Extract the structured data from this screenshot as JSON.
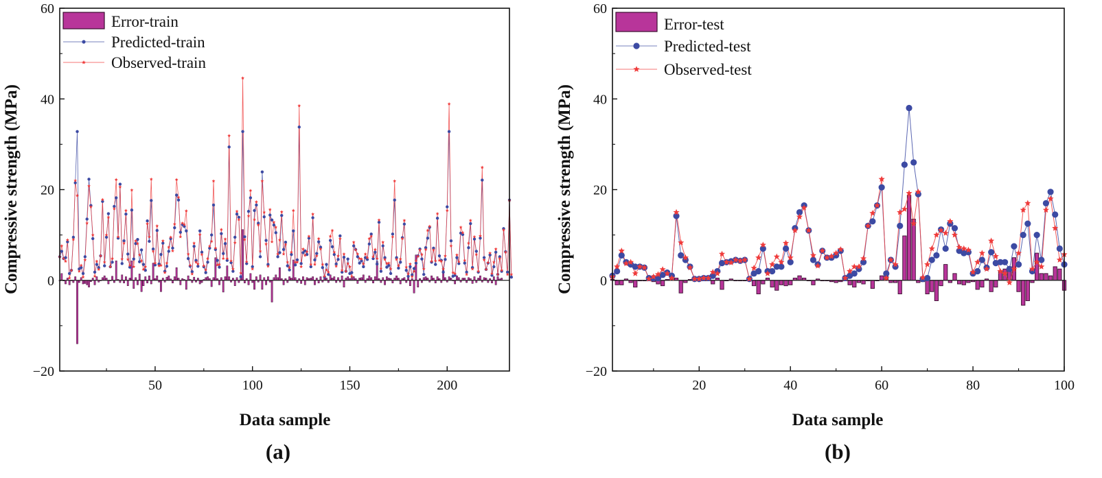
{
  "chart_data": [
    {
      "type": "bar+line",
      "panel_label": "(a)",
      "xlabel": "Data sample",
      "ylabel": "Compressive strength (MPa)",
      "xlim": [
        1,
        232
      ],
      "ylim": [
        -20,
        60
      ],
      "x_ticks": [
        50,
        100,
        150,
        200
      ],
      "y_ticks": [
        -20,
        0,
        20,
        40,
        60
      ],
      "grid": false,
      "legend_position": "top-left",
      "series_colors": {
        "error": "#b8359a",
        "predicted": "#3c4aa3",
        "observed": "#ef3b3b"
      },
      "series": [
        {
          "name": "Error-train",
          "kind": "bar",
          "values": [
            0.0,
            1.5,
            0.0,
            -0.8,
            0.5,
            -1.0,
            0.0,
            -0.5,
            0.8,
            -14.0,
            -0.5,
            0.6,
            -0.8,
            -0.7,
            -1.0,
            -1.5,
            -0.3,
            0.5,
            -1.0,
            0.8,
            -0.4,
            0.0,
            0.6,
            1.0,
            0.5,
            -0.8,
            0.0,
            0.9,
            -0.5,
            4.3,
            0.2,
            -0.5,
            1.2,
            -0.6,
            0.8,
            -1.2,
            0.5,
            4.3,
            -1.8,
            0.6,
            -1.0,
            1.4,
            -2.5,
            -1.2,
            0.8,
            -0.6,
            1.0,
            -0.8,
            3.8,
            0.4,
            1.0,
            -0.4,
            -2.5,
            0.5,
            -0.4,
            0.7,
            1.0,
            0.3,
            -0.6,
            0.8,
            2.8,
            0.5,
            -1.0,
            0.4,
            0.2,
            -2.0,
            1.0,
            0.2,
            -0.5,
            0.7,
            -0.4,
            0.5,
            -0.8,
            -0.5,
            0.2,
            0.6,
            0.8,
            0.4,
            -1.4,
            0.6,
            5.0,
            0.4,
            -1.0,
            0.6,
            -2.6,
            0.8,
            3.2,
            0.8,
            -0.4,
            0.5,
            -1.2,
            0.6,
            -0.5,
            0.8,
            11.2,
            -0.6,
            0.4,
            -1.0,
            1.5,
            -0.5,
            -2.0,
            0.8,
            -0.4,
            1.2,
            -2.0,
            0.6,
            -1.0,
            0.8,
            -0.4,
            -4.8,
            0.6,
            1.2,
            0.6,
            2.8,
            0.4,
            -1.0,
            0.4,
            -0.5,
            0.8,
            0.5,
            4.5,
            0.6,
            -0.5,
            0.4,
            -0.7,
            0.8,
            -1.0,
            0.6,
            0.4,
            0.5,
            0.8,
            -1.0,
            0.5,
            -0.6,
            0.8,
            -0.4,
            0.7,
            0.5,
            -0.5,
            1.2,
            0.5,
            0.8,
            -0.5,
            0.6,
            -0.4,
            1.0,
            -1.5,
            0.5,
            0.8,
            0.4,
            0.6,
            0.8,
            0.4,
            -0.7,
            0.5,
            0.6,
            1.2,
            -0.5,
            0.4,
            1.0,
            0.6,
            -0.6,
            0.8,
            4.2,
            0.4,
            -0.5,
            0.6,
            -1.0,
            0.8,
            0.5,
            0.4,
            -0.6,
            0.5,
            1.0,
            0.5,
            -0.8,
            0.4,
            0.6,
            -0.5,
            1.0,
            -1.2,
            0.4,
            -2.8,
            5.6,
            -1.5,
            0.4,
            -0.5,
            0.6,
            0.8,
            0.5,
            -0.4,
            1.0,
            0.5,
            -0.6,
            0.8,
            0.4,
            -0.5,
            2.5,
            0.6,
            -0.4,
            0.8,
            0.5,
            0.0,
            -0.8,
            1.0,
            0.6,
            -0.4,
            0.5,
            0.5,
            -0.5,
            0.6,
            0.4,
            -0.7,
            0.8,
            -0.5,
            0.5,
            1.0,
            -0.4,
            0.6,
            0.5,
            -0.5,
            0.4,
            -0.6,
            0.8,
            -1.0,
            0.8,
            0.3,
            0.5
          ]
        },
        {
          "name": "Predicted-train",
          "kind": "line",
          "values": [
            5.2,
            6.4,
            4.8,
            5.0,
            8.5,
            1.5,
            2.2,
            9.5,
            21.5,
            32.8,
            2.5,
            2.8,
            1.5,
            5.2,
            13.5,
            22.3,
            16.5,
            9.2,
            1.8,
            3.5,
            2.8,
            5.4,
            17.4,
            3.2,
            9.5,
            14.7,
            3.0,
            4.0,
            16.3,
            18.2,
            9.3,
            21.2,
            3.7,
            8.7,
            14.6,
            5.8,
            2.9,
            15.5,
            4.7,
            8.1,
            9.0,
            4.1,
            6.7,
            3.5,
            2.2,
            13.1,
            8.6,
            17.6,
            6.9,
            3.4,
            11.0,
            3.6,
            5.7,
            8.2,
            2.0,
            3.1,
            6.4,
            9.2,
            7.1,
            11.6,
            18.8,
            17.7,
            10.6,
            12.3,
            11.9,
            10.9,
            4.8,
            3.1,
            1.9,
            7.5,
            4.4,
            3.1,
            10.9,
            6.2,
            3.0,
            1.7,
            4.0,
            7.1,
            10.0,
            16.6,
            6.8,
            4.4,
            2.9,
            10.3,
            5.9,
            8.1,
            4.4,
            29.4,
            3.9,
            2.0,
            9.5,
            14.6,
            13.9,
            0.8,
            32.8,
            9.6,
            3.7,
            15.2,
            18.2,
            3.0,
            15.4,
            16.6,
            12.6,
            5.2,
            23.9,
            14.0,
            8.8,
            3.5,
            14.4,
            13.3,
            12.2,
            10.5,
            5.2,
            6.1,
            14.3,
            6.8,
            8.4,
            3.2,
            2.3,
            5.7,
            10.9,
            3.4,
            4.5,
            33.8,
            3.7,
            6.1,
            6.5,
            5.7,
            9.3,
            3.0,
            13.8,
            4.5,
            5.9,
            8.5,
            7.3,
            2.8,
            0.7,
            3.5,
            1.3,
            8.8,
            7.4,
            5.7,
            3.6,
            4.6,
            9.8,
            1.8,
            5.1,
            2.0,
            4.7,
            1.5,
            1.7,
            7.6,
            6.8,
            5.2,
            3.8,
            4.3,
            3.0,
            5.0,
            4.6,
            8.0,
            10.2,
            4.8,
            6.2,
            3.6,
            12.8,
            2.0,
            7.6,
            5.0,
            2.9,
            3.3,
            1.5,
            10.2,
            17.7,
            5.0,
            2.7,
            4.0,
            9.4,
            12.4,
            2.2,
            0.9,
            3.0,
            1.2,
            2.6,
            3.8,
            5.4,
            6.9,
            4.7,
            1.3,
            7.2,
            9.3,
            11.7,
            4.0,
            7.1,
            3.5,
            13.7,
            5.4,
            4.4,
            1.8,
            4.6,
            16.2,
            32.8,
            8.7,
            0.9,
            1.1,
            5.0,
            3.7,
            10.4,
            10.1,
            3.8,
            1.8,
            7.2,
            12.5,
            2.8,
            9.1,
            6.4,
            1.8,
            9.3,
            22.1,
            5.0,
            2.4,
            3.8,
            5.6,
            1.1,
            3.0,
            6.2,
            1.3,
            5.2,
            2.0,
            11.4,
            6.3,
            1.8,
            17.7,
            0.7
          ]
        },
        {
          "name": "Observed-train",
          "kind": "line",
          "values": [
            5.2,
            7.6,
            4.8,
            4.2,
            8.9,
            0.5,
            2.2,
            9.0,
            22.0,
            18.7,
            2.0,
            3.3,
            0.7,
            4.5,
            12.6,
            20.8,
            16.2,
            10.0,
            0.9,
            4.2,
            2.4,
            5.4,
            17.8,
            4.0,
            10.0,
            13.9,
            3.0,
            4.8,
            15.8,
            22.2,
            9.6,
            20.6,
            4.7,
            8.2,
            15.4,
            4.6,
            3.3,
            19.9,
            3.0,
            8.7,
            8.1,
            5.6,
            4.3,
            2.4,
            3.0,
            12.5,
            9.6,
            22.3,
            6.4,
            3.8,
            12.0,
            3.2,
            3.3,
            8.7,
            1.7,
            3.8,
            7.3,
            9.5,
            6.5,
            12.4,
            22.2,
            18.3,
            9.6,
            12.6,
            12.3,
            15.3,
            5.8,
            3.3,
            1.4,
            8.2,
            4.0,
            3.6,
            10.1,
            5.7,
            3.2,
            2.3,
            4.8,
            7.5,
            8.6,
            21.9,
            7.1,
            3.4,
            3.5,
            11.2,
            4.8,
            9.1,
            4.8,
            31.9,
            4.3,
            2.5,
            8.3,
            15.2,
            13.4,
            1.6,
            44.6,
            9.0,
            4.1,
            14.2,
            19.8,
            2.5,
            13.4,
            17.3,
            12.2,
            6.4,
            21.9,
            15.0,
            8.0,
            3.1,
            15.6,
            8.5,
            12.8,
            11.7,
            5.8,
            8.9,
            15.1,
            5.8,
            7.9,
            4.0,
            2.8,
            6.2,
            15.4,
            4.0,
            4.0,
            38.5,
            3.0,
            6.9,
            5.5,
            6.3,
            9.7,
            3.5,
            14.6,
            3.5,
            5.4,
            9.2,
            6.9,
            3.5,
            0.9,
            2.3,
            1.8,
            9.7,
            11.0,
            6.2,
            3.1,
            5.4,
            9.2,
            2.2,
            5.8,
            2.0,
            3.7,
            3.0,
            0.9,
            8.4,
            6.7,
            5.8,
            4.8,
            4.7,
            3.6,
            5.8,
            5.0,
            9.2,
            9.7,
            5.2,
            6.8,
            4.8,
            13.3,
            2.6,
            8.4,
            4.6,
            3.7,
            3.8,
            2.5,
            9.6,
            21.9,
            4.6,
            3.2,
            4.7,
            9.2,
            13.2,
            2.9,
            1.4,
            3.6,
            0.8,
            2.0,
            4.3,
            5.3,
            6.7,
            5.7,
            2.5,
            6.8,
            11.0,
            11.9,
            4.2,
            6.7,
            4.3,
            14.7,
            4.4,
            4.2,
            2.5,
            5.4,
            15.4,
            38.9,
            7.6,
            1.7,
            1.5,
            5.6,
            4.1,
            11.7,
            10.5,
            4.4,
            1.3,
            8.2,
            13.2,
            2.5,
            9.6,
            5.7,
            2.0,
            9.8,
            24.9,
            4.5,
            2.4,
            3.9,
            6.0,
            1.5,
            4.0,
            6.9,
            1.3,
            4.8,
            2.2,
            11.1,
            6.2,
            1.3,
            17.6,
            1.3
          ]
        }
      ]
    },
    {
      "type": "bar+line",
      "panel_label": "(b)",
      "xlabel": "Data sample",
      "ylabel": "Compressive strength (MPa)",
      "xlim": [
        1,
        100
      ],
      "ylim": [
        -20,
        60
      ],
      "x_ticks": [
        20,
        40,
        60,
        80,
        100
      ],
      "y_ticks": [
        -20,
        0,
        20,
        40,
        60
      ],
      "grid": false,
      "legend_position": "top-left",
      "series_colors": {
        "error": "#b8359a",
        "predicted": "#3c4aa3",
        "observed": "#ef3b3b"
      },
      "series": [
        {
          "name": "Error-test",
          "kind": "bar",
          "values": [
            0.2,
            -1.0,
            -1.0,
            0.3,
            -0.5,
            -1.5,
            0.0,
            0.0,
            0.2,
            -0.3,
            -0.8,
            -1.2,
            0.2,
            0.5,
            0.5,
            -2.8,
            -0.5,
            0.2,
            0.0,
            0.0,
            0.0,
            0.0,
            -0.8,
            0.5,
            -2.0,
            0.0,
            0.3,
            0.0,
            0.0,
            0.0,
            0.0,
            -1.2,
            -3.0,
            -0.8,
            0.5,
            -1.5,
            -2.2,
            -1.0,
            -1.2,
            -1.0,
            0.5,
            1.0,
            0.5,
            0.0,
            -1.0,
            0.3,
            0.0,
            0.0,
            -0.3,
            -0.5,
            -0.3,
            0.0,
            -1.0,
            -1.5,
            -0.5,
            -0.8,
            0.0,
            -1.8,
            0.0,
            1.0,
            1.0,
            -0.5,
            -0.5,
            -3.0,
            9.8,
            18.8,
            13.5,
            -0.5,
            -0.3,
            -3.0,
            -2.5,
            -4.5,
            -1.2,
            3.5,
            -0.5,
            1.5,
            -0.8,
            -1.0,
            -0.5,
            -0.3,
            -2.0,
            -1.5,
            0.3,
            -2.5,
            -1.5,
            2.0,
            2.5,
            3.0,
            5.0,
            -2.5,
            -5.5,
            -4.5,
            -0.5,
            6.0,
            1.5,
            1.5,
            1.0,
            3.0,
            2.5,
            -2.2
          ]
        },
        {
          "name": "Predicted-test",
          "kind": "line",
          "values": [
            1.0,
            2.0,
            5.5,
            4.0,
            3.5,
            3.0,
            3.0,
            2.8,
            0.5,
            0.5,
            0.5,
            1.2,
            1.7,
            1.0,
            14.2,
            5.5,
            4.5,
            3.0,
            0.3,
            0.3,
            0.5,
            0.5,
            1.0,
            2.0,
            3.8,
            4.0,
            4.2,
            4.5,
            4.3,
            4.5,
            0.3,
            1.5,
            2.0,
            7.0,
            2.0,
            2.0,
            3.0,
            3.0,
            7.0,
            4.0,
            11.5,
            15.0,
            16.5,
            11.0,
            4.5,
            3.5,
            6.5,
            5.0,
            5.0,
            5.5,
            6.5,
            0.5,
            1.0,
            1.5,
            2.5,
            4.0,
            12.0,
            13.0,
            16.5,
            20.5,
            1.5,
            4.5,
            3.0,
            12.0,
            25.5,
            38.0,
            26.0,
            19.0,
            0.3,
            0.5,
            4.5,
            5.5,
            11.2,
            7.0,
            12.5,
            11.5,
            6.5,
            6.0,
            6.2,
            1.5,
            2.0,
            4.5,
            2.8,
            6.2,
            3.8,
            4.0,
            4.0,
            2.5,
            7.5,
            3.5,
            10.0,
            12.5,
            2.0,
            10.0,
            4.5,
            17.0,
            19.5,
            14.5,
            7.0,
            3.5
          ]
        },
        {
          "name": "Observed-test",
          "kind": "line",
          "values": [
            0.8,
            3.0,
            6.5,
            3.7,
            4.0,
            1.5,
            3.0,
            2.8,
            0.3,
            0.8,
            1.3,
            2.4,
            1.5,
            0.5,
            15.0,
            8.3,
            5.0,
            2.8,
            0.3,
            0.3,
            0.5,
            0.5,
            1.8,
            1.5,
            5.8,
            4.0,
            3.9,
            4.5,
            4.3,
            4.5,
            0.3,
            2.7,
            5.0,
            7.8,
            1.5,
            3.5,
            5.2,
            4.0,
            8.2,
            5.0,
            11.0,
            14.0,
            16.0,
            11.0,
            5.5,
            3.2,
            6.5,
            5.0,
            5.3,
            6.0,
            6.8,
            0.5,
            2.0,
            3.0,
            3.0,
            4.8,
            12.0,
            14.8,
            16.5,
            22.3,
            0.5,
            4.5,
            3.5,
            15.0,
            15.7,
            19.2,
            12.5,
            19.5,
            0.6,
            3.5,
            7.0,
            10.0,
            11.0,
            10.4,
            13.0,
            10.0,
            7.3,
            7.0,
            6.7,
            1.8,
            4.0,
            6.0,
            2.5,
            8.7,
            5.3,
            2.0,
            1.5,
            -0.5,
            2.5,
            6.0,
            15.5,
            17.0,
            2.5,
            4.0,
            3.0,
            15.5,
            18.0,
            11.5,
            4.5,
            5.7
          ]
        }
      ]
    }
  ]
}
